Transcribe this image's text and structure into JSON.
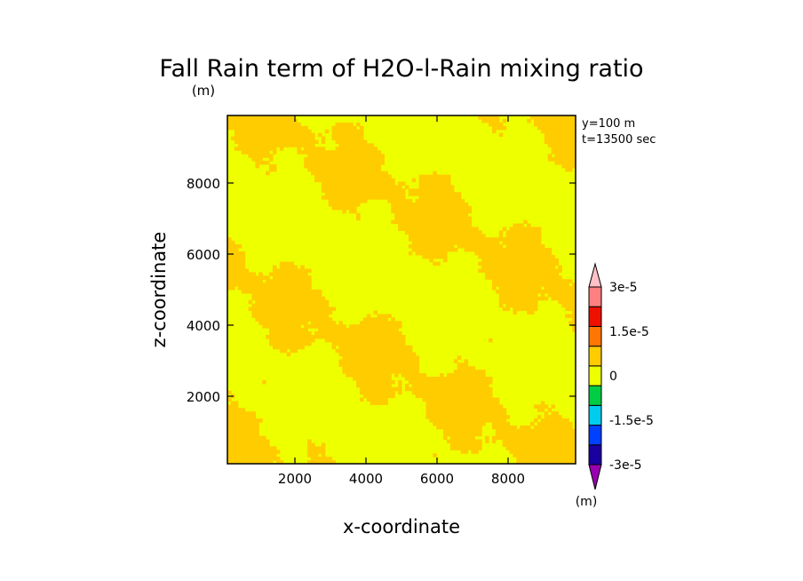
{
  "chart_data": {
    "type": "heatmap",
    "title": "Fall Rain term of H2O-l-Rain mixing ratio",
    "title_units": "(m)",
    "xlabel": "x-coordinate",
    "ylabel": "z-coordinate",
    "xlim": [
      100,
      9900
    ],
    "ylim": [
      100,
      9900
    ],
    "x_ticks": [
      2000,
      4000,
      6000,
      8000
    ],
    "y_ticks": [
      2000,
      4000,
      6000,
      8000
    ],
    "x_tick_labels": [
      "2000",
      "4000",
      "6000",
      "8000"
    ],
    "y_tick_labels": [
      "2000",
      "4000",
      "6000",
      "8000"
    ],
    "annotations": [
      "y=100 m",
      "t=13500 sec"
    ],
    "colorbar": {
      "units": "(m)",
      "labels": [
        "3e-5",
        "1.5e-5",
        "0",
        "-1.5e-5",
        "-3e-5"
      ],
      "levels": [
        -3e-05,
        -2.25e-05,
        -1.5e-05,
        -7.5e-06,
        0,
        7.5e-06,
        1.5e-05,
        2.25e-05,
        3e-05
      ],
      "colors": [
        "#9900b0",
        "#1a00a0",
        "#0040ff",
        "#00ccee",
        "#00cc44",
        "#eeff00",
        "#ffcc00",
        "#ff7700",
        "#ee1100",
        "#ff8080",
        "#ffc0c8"
      ],
      "extend": "both"
    },
    "fill_colors": {
      "near_zero": "#eeff00",
      "small_positive": "#ffcc00"
    },
    "field_description_levels": {
      "lower": 0,
      "upper": 7.5e-06
    },
    "grid": false
  }
}
